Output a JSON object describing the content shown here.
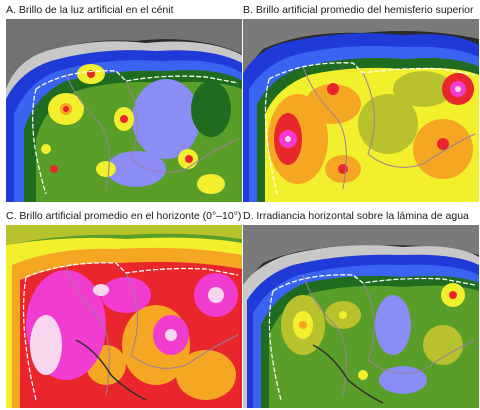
{
  "panels": [
    {
      "id": "A",
      "title": "A. Brillo de la luz artificial en el cénit"
    },
    {
      "id": "B",
      "title": "B. Brillo artificial promedio del hemisferio superior"
    },
    {
      "id": "C",
      "title": "C. Brillo artificial promedio en el horizonte (0°–10°)"
    },
    {
      "id": "D",
      "title": "D. Irradiancia horizontal sobre la lámina de agua"
    }
  ],
  "colors": {
    "ocean_far": "#2a2a2a",
    "ocean_grey": "#7a7a7a",
    "ocean_light": "#c8c8c8",
    "blue_dark": "#1f3ad6",
    "blue": "#3b63f2",
    "blue_light": "#8c8cf5",
    "green_dark": "#1f6b1f",
    "green": "#5a9e2a",
    "yellow_green": "#b7c22c",
    "yellow": "#f2ef2c",
    "orange": "#f5a623",
    "red": "#e8262c",
    "magenta": "#f03ccf",
    "pink_white": "#f7d6ee",
    "border_white": "#ffffff",
    "region_border": "#9a7fa0",
    "coast": "#303030"
  }
}
